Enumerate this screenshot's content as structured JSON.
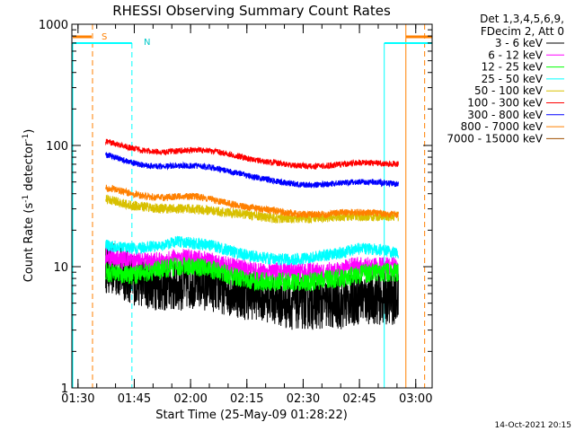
{
  "chart_data": {
    "type": "line",
    "title": "RHESSI Observing Summary Count Rates",
    "xlabel": "Start Time (25-May-09 01:28:22)",
    "ylabel_main": "Count Rate (s",
    "ylabel_sup1": "-1",
    "ylabel_mid": " detector",
    "ylabel_sup2": "-1",
    "ylabel_end": ")",
    "y_scale": "log",
    "ylim": [
      1,
      1000
    ],
    "xlim_minutes": [
      0,
      96
    ],
    "x_ticks": [
      {
        "label": "01:30",
        "min": 1.63
      },
      {
        "label": "01:45",
        "min": 16.63
      },
      {
        "label": "02:00",
        "min": 31.63
      },
      {
        "label": "02:15",
        "min": 46.63
      },
      {
        "label": "02:30",
        "min": 61.63
      },
      {
        "label": "02:45",
        "min": 76.63
      },
      {
        "label": "03:00",
        "min": 91.63
      }
    ],
    "y_ticks": [
      {
        "label": "1",
        "value": 1
      },
      {
        "label": "10",
        "value": 10
      },
      {
        "label": "100",
        "value": 100
      },
      {
        "label": "1000",
        "value": 1000
      }
    ],
    "legend": {
      "header1": "Det 1,3,4,5,6,9,",
      "header2": "FDecim 2, Att 0",
      "placement": "right"
    },
    "series": [
      {
        "name": "3 - 6 keV",
        "color": "#000000",
        "min": [
          9,
          16,
          20,
          24,
          28,
          33,
          37,
          42,
          46,
          50,
          54,
          57,
          60,
          64,
          68,
          72,
          76,
          80,
          84,
          87
        ],
        "values": [
          10,
          8,
          7.5,
          7,
          7,
          7.5,
          7,
          6.5,
          6,
          6,
          5.5,
          5,
          5,
          5,
          5,
          5,
          5.5,
          5.5,
          5.5,
          5.5
        ],
        "noise": 0.22
      },
      {
        "name": "6 - 12 keV",
        "color": "#ff00ff",
        "min": [
          9,
          16,
          20,
          24,
          28,
          33,
          37,
          42,
          46,
          50,
          54,
          57,
          60,
          64,
          68,
          72,
          76,
          80,
          84,
          87
        ],
        "values": [
          12,
          11,
          11,
          11,
          12,
          11.5,
          11,
          10,
          9.5,
          9,
          9,
          9,
          9,
          9,
          9,
          9.5,
          10,
          10,
          10,
          10
        ],
        "noise": 0.08
      },
      {
        "name": "12 - 25 keV",
        "color": "#00ff00",
        "min": [
          9,
          16,
          20,
          24,
          28,
          33,
          37,
          42,
          46,
          50,
          54,
          57,
          60,
          64,
          68,
          72,
          76,
          80,
          84,
          87
        ],
        "values": [
          9,
          8.5,
          9,
          9.5,
          10,
          10,
          9.5,
          8.5,
          8,
          7.5,
          7.5,
          7.5,
          7.5,
          7.5,
          8,
          8,
          8.5,
          9,
          9,
          9
        ],
        "noise": 0.08
      },
      {
        "name": "25 - 50 keV",
        "color": "#00ffff",
        "min": [
          9,
          16,
          20,
          24,
          28,
          33,
          37,
          42,
          46,
          50,
          54,
          57,
          60,
          64,
          68,
          72,
          76,
          80,
          84,
          87
        ],
        "values": [
          15,
          14,
          14.5,
          15,
          16,
          15.5,
          15,
          13.5,
          12.5,
          12,
          11.5,
          11.5,
          11.5,
          12,
          12.5,
          13,
          14,
          14,
          13.5,
          13
        ],
        "noise": 0.05
      },
      {
        "name": "50 - 100 keV",
        "color": "#d8c000",
        "min": [
          9,
          16,
          20,
          24,
          28,
          33,
          37,
          42,
          46,
          50,
          54,
          57,
          60,
          64,
          68,
          72,
          76,
          80,
          84,
          87
        ],
        "values": [
          36,
          32,
          31,
          30,
          30,
          30,
          29,
          28,
          27,
          26,
          25,
          25,
          25,
          25,
          25.5,
          26,
          26,
          26,
          26,
          26
        ],
        "noise": 0.04
      },
      {
        "name": "100 - 300 keV",
        "color": "#ff0000",
        "min": [
          9,
          16,
          20,
          24,
          28,
          33,
          37,
          42,
          46,
          50,
          54,
          57,
          60,
          64,
          68,
          72,
          76,
          80,
          84,
          87
        ],
        "values": [
          108,
          95,
          90,
          88,
          90,
          92,
          90,
          85,
          79,
          75,
          72,
          70,
          68,
          67,
          68,
          70,
          72,
          72,
          71,
          70
        ],
        "noise": 0.025
      },
      {
        "name": "300 - 800 keV",
        "color": "#0000ff",
        "min": [
          9,
          16,
          20,
          24,
          28,
          33,
          37,
          42,
          46,
          50,
          54,
          57,
          60,
          64,
          68,
          72,
          76,
          80,
          84,
          87
        ],
        "values": [
          84,
          72,
          68,
          67,
          68,
          68,
          66,
          61,
          57,
          54,
          51,
          49,
          48,
          47,
          48,
          49,
          50,
          50,
          49,
          48
        ],
        "noise": 0.025
      },
      {
        "name": "800 - 7000 keV",
        "color": "#ff8000",
        "min": [
          9,
          16,
          20,
          24,
          28,
          33,
          37,
          42,
          46,
          50,
          54,
          57,
          60,
          64,
          68,
          72,
          76,
          80,
          84,
          87
        ],
        "values": [
          45,
          40,
          38,
          37,
          38,
          38,
          36,
          33,
          31,
          30,
          29,
          28,
          27,
          27,
          27,
          28,
          28,
          28,
          27,
          27
        ],
        "noise": 0.03
      },
      {
        "name": "7000 - 15000 keV",
        "color": "#a05000",
        "min": [],
        "values": [],
        "noise": 0
      }
    ],
    "annotations": {
      "S": "S",
      "N": "N",
      "timestamp": "14-Oct-2021 20:15"
    },
    "markers": {
      "orange_dashed_min": [
        5.5,
        94
      ],
      "orange_solid_min": [
        89
      ],
      "cyan_dashed_min": [
        16
      ],
      "cyan_solid_min": [
        0,
        83
      ]
    }
  }
}
